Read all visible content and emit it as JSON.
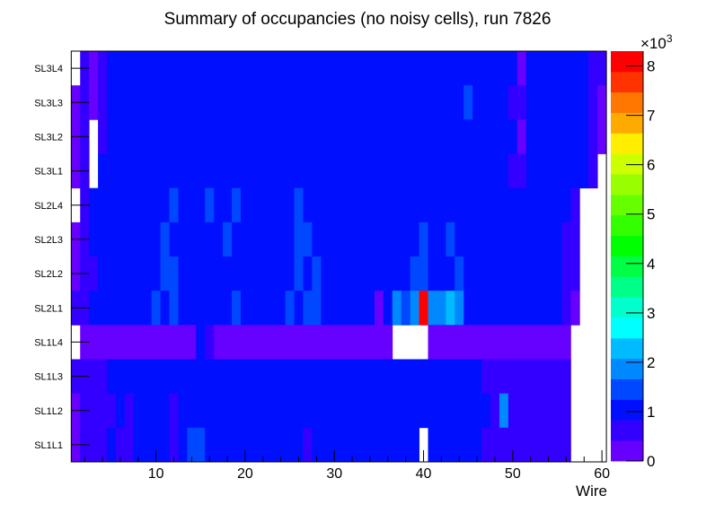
{
  "chart_data": {
    "type": "heatmap",
    "title": "Summary of occupancies (no noisy cells), run 7826",
    "xlabel": "Wire",
    "ylabel": "",
    "xlim": [
      0.5,
      60.5
    ],
    "x_ticks": [
      "10",
      "20",
      "30",
      "40",
      "50",
      "60"
    ],
    "x_tick_values": [
      10,
      20,
      30,
      40,
      50,
      60
    ],
    "z_range": [
      0,
      8300
    ],
    "z_ticks": [
      "0",
      "1",
      "2",
      "3",
      "4",
      "5",
      "6",
      "7",
      "8"
    ],
    "z_tick_values": [
      0,
      1000,
      2000,
      3000,
      4000,
      5000,
      6000,
      7000,
      8000
    ],
    "z_multiplier": "×10",
    "z_multiplier_exp": "3",
    "palette": [
      "#6600ff",
      "#3300ff",
      "#0010ff",
      "#0048ff",
      "#0088ff",
      "#00bbff",
      "#00ffff",
      "#00ffcc",
      "#00ff88",
      "#00ff44",
      "#00ff00",
      "#33ff00",
      "#66ff00",
      "#99ff00",
      "#ccff00",
      "#ffee00",
      "#ffaa00",
      "#ff7700",
      "#ff3300",
      "#ff0000"
    ],
    "rows_top_to_bottom": [
      "SL3L4",
      "SL3L3",
      "SL3L2",
      "SL3L1",
      "SL2L4",
      "SL2L3",
      "SL2L2",
      "SL2L1",
      "SL1L4",
      "SL1L3",
      "SL1L2",
      "SL1L1"
    ],
    "values_rle_note": "each row: [value, run-length] over wires 1..60; null = empty bin",
    "values_rle": [
      [
        [
          null,
          1
        ],
        [
          600,
          1
        ],
        [
          200,
          1
        ],
        [
          600,
          1
        ],
        [
          1000,
          46
        ],
        [
          200,
          1
        ],
        [
          1000,
          7
        ],
        [
          600,
          2
        ]
      ],
      [
        [
          200,
          1
        ],
        [
          600,
          1
        ],
        [
          200,
          1
        ],
        [
          600,
          1
        ],
        [
          1000,
          40
        ],
        [
          1450,
          1
        ],
        [
          1000,
          4
        ],
        [
          600,
          2
        ],
        [
          1000,
          7
        ],
        [
          600,
          1
        ],
        [
          200,
          1
        ]
      ],
      [
        [
          200,
          1
        ],
        [
          600,
          1
        ],
        [
          null,
          1
        ],
        [
          600,
          1
        ],
        [
          1000,
          46
        ],
        [
          200,
          1
        ],
        [
          1000,
          7
        ],
        [
          600,
          1
        ],
        [
          200,
          1
        ]
      ],
      [
        [
          200,
          1
        ],
        [
          600,
          1
        ],
        [
          null,
          1
        ],
        [
          1000,
          46
        ],
        [
          600,
          2
        ],
        [
          1000,
          7
        ],
        [
          600,
          1
        ],
        [
          null,
          1
        ]
      ],
      [
        [
          null,
          1
        ],
        [
          600,
          1
        ],
        [
          1000,
          9
        ],
        [
          1450,
          1
        ],
        [
          1000,
          3
        ],
        [
          1450,
          1
        ],
        [
          1000,
          2
        ],
        [
          1450,
          1
        ],
        [
          1000,
          6
        ],
        [
          1450,
          1
        ],
        [
          1000,
          30
        ],
        [
          600,
          1
        ],
        [
          null,
          3
        ]
      ],
      [
        [
          200,
          1
        ],
        [
          600,
          1
        ],
        [
          1000,
          8
        ],
        [
          1450,
          1
        ],
        [
          1000,
          6
        ],
        [
          1450,
          1
        ],
        [
          1000,
          7
        ],
        [
          1450,
          2
        ],
        [
          1000,
          12
        ],
        [
          1450,
          1
        ],
        [
          1000,
          2
        ],
        [
          1450,
          1
        ],
        [
          1000,
          12
        ],
        [
          600,
          2
        ],
        [
          null,
          3
        ]
      ],
      [
        [
          200,
          1
        ],
        [
          600,
          2
        ],
        [
          1000,
          7
        ],
        [
          1450,
          2
        ],
        [
          1000,
          13
        ],
        [
          1450,
          1
        ],
        [
          1000,
          1
        ],
        [
          1450,
          1
        ],
        [
          1000,
          10
        ],
        [
          1450,
          2
        ],
        [
          1000,
          3
        ],
        [
          1450,
          1
        ],
        [
          1000,
          11
        ],
        [
          600,
          2
        ],
        [
          null,
          3
        ]
      ],
      [
        [
          600,
          2
        ],
        [
          1000,
          7
        ],
        [
          1450,
          1
        ],
        [
          1000,
          1
        ],
        [
          1450,
          1
        ],
        [
          1000,
          6
        ],
        [
          1450,
          1
        ],
        [
          1000,
          5
        ],
        [
          1450,
          1
        ],
        [
          1000,
          1
        ],
        [
          1450,
          2
        ],
        [
          1000,
          6
        ],
        [
          200,
          1
        ],
        [
          1000,
          1
        ],
        [
          1850,
          1
        ],
        [
          1450,
          1
        ],
        [
          1850,
          1
        ],
        [
          8200,
          1
        ],
        [
          1850,
          2
        ],
        [
          2300,
          1
        ],
        [
          1850,
          1
        ],
        [
          1000,
          11
        ],
        [
          600,
          1
        ],
        [
          200,
          1
        ],
        [
          null,
          3
        ]
      ],
      [
        [
          null,
          1
        ],
        [
          200,
          13
        ],
        [
          1000,
          1
        ],
        [
          600,
          1
        ],
        [
          200,
          20
        ],
        [
          null,
          4
        ],
        [
          200,
          16
        ],
        [
          null,
          4
        ]
      ],
      [
        [
          600,
          4
        ],
        [
          1000,
          42
        ],
        [
          600,
          10
        ],
        [
          null,
          4
        ]
      ],
      [
        [
          200,
          1
        ],
        [
          600,
          4
        ],
        [
          1000,
          1
        ],
        [
          600,
          1
        ],
        [
          1000,
          4
        ],
        [
          600,
          1
        ],
        [
          1000,
          35
        ],
        [
          600,
          1
        ],
        [
          1850,
          1
        ],
        [
          600,
          7
        ],
        [
          null,
          4
        ]
      ],
      [
        [
          200,
          1
        ],
        [
          600,
          3
        ],
        [
          1000,
          1
        ],
        [
          600,
          2
        ],
        [
          1000,
          4
        ],
        [
          600,
          1
        ],
        [
          1000,
          1
        ],
        [
          1450,
          2
        ],
        [
          1000,
          11
        ],
        [
          600,
          1
        ],
        [
          1000,
          12
        ],
        [
          null,
          1
        ],
        [
          1000,
          6
        ],
        [
          600,
          10
        ],
        [
          null,
          4
        ]
      ]
    ]
  }
}
